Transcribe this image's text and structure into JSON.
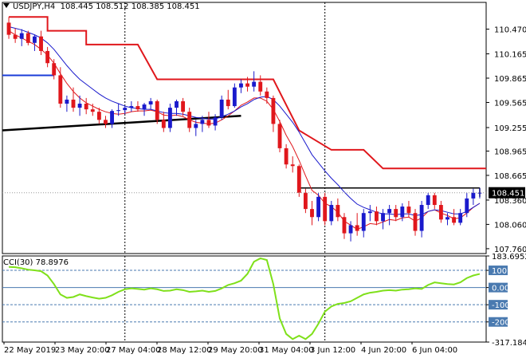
{
  "header": {
    "symbol_tf": "USDJPY,H4",
    "ohlc": "108.445 108.512 108.385 108.451"
  },
  "indicator": {
    "label": "CCI(30) 78.8976"
  },
  "colors": {
    "bull": "#1a1acc",
    "bear": "#e0171c",
    "fast_ma": "#1a1acc",
    "slow_ma": "#e0171c",
    "channel": "#e0171c",
    "trend": "#000000",
    "cci": "#7fe01a",
    "level": "#4a7ab0",
    "price_badge": "#000000",
    "blue_marker": "#1a3cd8"
  },
  "chart_data": [
    {
      "type": "candlestick",
      "title": "",
      "ylim": [
        107.7,
        110.8
      ],
      "y_ticks": [
        "110.470",
        "110.165",
        "109.865",
        "109.565",
        "109.255",
        "108.965",
        "108.665",
        "108.360",
        "108.060",
        "107.760"
      ],
      "current_price_label": "108.451",
      "current_price": 108.451,
      "x_labels": [
        "22 May 2019",
        "23 May 20:00",
        "27 May 04:00",
        "28 May 12:00",
        "29 May 20:00",
        "31 May 04:00",
        "3 Jun 12:00",
        "4 Jun 20:00",
        "6 Jun 04:00"
      ],
      "candles": [
        [
          110.55,
          110.62,
          110.35,
          110.4
        ],
        [
          110.4,
          110.48,
          110.3,
          110.35
        ],
        [
          110.35,
          110.47,
          110.26,
          110.42
        ],
        [
          110.42,
          110.45,
          110.27,
          110.3
        ],
        [
          110.3,
          110.4,
          110.2,
          110.38
        ],
        [
          110.38,
          110.45,
          110.15,
          110.2
        ],
        [
          110.2,
          110.25,
          110.0,
          110.05
        ],
        [
          110.05,
          110.1,
          109.85,
          109.9
        ],
        [
          109.9,
          110.0,
          109.5,
          109.55
        ],
        [
          109.55,
          109.65,
          109.45,
          109.6
        ],
        [
          109.6,
          109.75,
          109.45,
          109.5
        ],
        [
          109.5,
          109.65,
          109.4,
          109.55
        ],
        [
          109.55,
          109.62,
          109.42,
          109.48
        ],
        [
          109.48,
          109.55,
          109.4,
          109.45
        ],
        [
          109.45,
          109.5,
          109.3,
          109.35
        ],
        [
          109.35,
          109.4,
          109.25,
          109.3
        ],
        [
          109.3,
          109.48,
          109.25,
          109.46
        ],
        [
          109.46,
          109.55,
          109.4,
          109.47
        ],
        [
          109.47,
          109.52,
          109.42,
          109.5
        ],
        [
          109.5,
          109.58,
          109.45,
          109.52
        ],
        [
          109.52,
          109.58,
          109.45,
          109.48
        ],
        [
          109.48,
          109.56,
          109.4,
          109.54
        ],
        [
          109.54,
          109.62,
          109.48,
          109.58
        ],
        [
          109.58,
          109.6,
          109.3,
          109.35
        ],
        [
          109.35,
          109.45,
          109.2,
          109.25
        ],
        [
          109.25,
          109.55,
          109.2,
          109.5
        ],
        [
          109.5,
          109.6,
          109.4,
          109.58
        ],
        [
          109.58,
          109.62,
          109.4,
          109.45
        ],
        [
          109.45,
          109.5,
          109.2,
          109.25
        ],
        [
          109.25,
          109.35,
          109.15,
          109.3
        ],
        [
          109.3,
          109.4,
          109.2,
          109.35
        ],
        [
          109.35,
          109.45,
          109.25,
          109.28
        ],
        [
          109.28,
          109.42,
          109.22,
          109.38
        ],
        [
          109.38,
          109.65,
          109.35,
          109.6
        ],
        [
          109.6,
          109.72,
          109.48,
          109.52
        ],
        [
          109.52,
          109.8,
          109.5,
          109.75
        ],
        [
          109.75,
          109.85,
          109.68,
          109.8
        ],
        [
          109.8,
          109.88,
          109.7,
          109.76
        ],
        [
          109.76,
          109.95,
          109.7,
          109.82
        ],
        [
          109.82,
          109.9,
          109.65,
          109.7
        ],
        [
          109.7,
          109.75,
          109.55,
          109.62
        ],
        [
          109.62,
          109.65,
          109.2,
          109.3
        ],
        [
          109.3,
          109.35,
          108.95,
          109.0
        ],
        [
          109.0,
          109.05,
          108.75,
          108.8
        ],
        [
          108.8,
          108.9,
          108.7,
          108.78
        ],
        [
          108.78,
          108.8,
          108.4,
          108.45
        ],
        [
          108.45,
          108.5,
          108.2,
          108.25
        ],
        [
          108.25,
          108.35,
          108.05,
          108.15
        ],
        [
          108.15,
          108.45,
          108.1,
          108.4
        ],
        [
          108.4,
          108.45,
          108.05,
          108.1
        ],
        [
          108.1,
          108.35,
          108.05,
          108.3
        ],
        [
          108.3,
          108.38,
          108.1,
          108.15
        ],
        [
          108.15,
          108.2,
          107.88,
          107.95
        ],
        [
          107.95,
          108.1,
          107.85,
          108.05
        ],
        [
          108.05,
          108.2,
          107.92,
          107.98
        ],
        [
          107.98,
          108.25,
          107.9,
          108.2
        ],
        [
          108.2,
          108.3,
          108.1,
          108.22
        ],
        [
          108.22,
          108.28,
          108.05,
          108.1
        ],
        [
          108.1,
          108.25,
          108.0,
          108.2
        ],
        [
          108.2,
          108.3,
          108.05,
          108.25
        ],
        [
          108.25,
          108.3,
          108.1,
          108.15
        ],
        [
          108.15,
          108.32,
          108.1,
          108.28
        ],
        [
          108.28,
          108.35,
          108.15,
          108.2
        ],
        [
          108.2,
          108.25,
          107.92,
          107.98
        ],
        [
          107.98,
          108.35,
          107.9,
          108.3
        ],
        [
          108.3,
          108.45,
          108.25,
          108.42
        ],
        [
          108.42,
          108.45,
          108.25,
          108.3
        ],
        [
          108.3,
          108.35,
          108.08,
          108.12
        ],
        [
          108.12,
          108.2,
          108.05,
          108.15
        ],
        [
          108.15,
          108.25,
          108.05,
          108.08
        ],
        [
          108.08,
          108.25,
          108.05,
          108.2
        ],
        [
          108.2,
          108.45,
          108.15,
          108.38
        ],
        [
          108.38,
          108.5,
          108.3,
          108.45
        ],
        [
          108.45,
          108.51,
          108.38,
          108.45
        ]
      ],
      "fast_ma": [
        110.5,
        110.48,
        110.46,
        110.43,
        110.4,
        110.36,
        110.3,
        110.22,
        110.12,
        110.02,
        109.93,
        109.85,
        109.79,
        109.73,
        109.67,
        109.62,
        109.58,
        109.55,
        109.52,
        109.5,
        109.49,
        109.48,
        109.48,
        109.46,
        109.44,
        109.43,
        109.43,
        109.42,
        109.4,
        109.38,
        109.37,
        109.36,
        109.36,
        109.39,
        109.42,
        109.46,
        109.51,
        109.55,
        109.6,
        109.63,
        109.64,
        109.6,
        109.52,
        109.42,
        109.32,
        109.2,
        109.06,
        108.92,
        108.82,
        108.72,
        108.63,
        108.55,
        108.46,
        108.38,
        108.31,
        108.27,
        108.24,
        108.21,
        108.19,
        108.19,
        108.18,
        108.19,
        108.19,
        108.17,
        108.18,
        108.22,
        108.24,
        108.23,
        108.21,
        108.19,
        108.19,
        108.22,
        108.27,
        108.32
      ],
      "slow_ma": [
        110.45,
        110.4,
        110.36,
        110.32,
        110.28,
        110.22,
        110.15,
        110.05,
        109.92,
        109.8,
        109.7,
        109.62,
        109.56,
        109.52,
        109.48,
        109.45,
        109.43,
        109.42,
        109.43,
        109.45,
        109.46,
        109.46,
        109.47,
        109.45,
        109.41,
        109.4,
        109.41,
        109.39,
        109.35,
        109.32,
        109.31,
        109.3,
        109.31,
        109.35,
        109.4,
        109.46,
        109.53,
        109.57,
        109.62,
        109.62,
        109.58,
        109.48,
        109.33,
        109.16,
        109.02,
        108.85,
        108.66,
        108.48,
        108.42,
        108.32,
        108.28,
        108.21,
        108.1,
        108.05,
        108.0,
        108.03,
        108.07,
        108.06,
        108.09,
        108.12,
        108.11,
        108.14,
        108.15,
        108.1,
        108.14,
        108.22,
        108.24,
        108.2,
        108.17,
        108.13,
        108.14,
        108.2,
        108.27,
        108.32
      ],
      "channel_upper": [
        [
          0,
          110.62
        ],
        [
          6,
          110.62
        ],
        [
          6,
          110.45
        ],
        [
          12,
          110.45
        ],
        [
          12,
          110.28
        ],
        [
          20,
          110.28
        ],
        [
          23,
          109.85
        ],
        [
          41,
          109.85
        ],
        [
          45,
          109.22
        ],
        [
          50,
          108.98
        ],
        [
          55,
          108.98
        ],
        [
          58,
          108.75
        ],
        [
          74,
          108.75
        ]
      ],
      "resistance_line": {
        "from": [
          45,
          108.51
        ],
        "to": [
          73,
          108.51
        ]
      },
      "trend_line": {
        "from": [
          0,
          109.22
        ],
        "to": [
          36,
          109.4
        ]
      },
      "blue_marker": {
        "from": [
          0,
          109.9
        ],
        "to": [
          7,
          109.9
        ]
      },
      "vlines_at": [
        18,
        49
      ]
    },
    {
      "type": "line",
      "title": "",
      "series": [
        {
          "name": "",
          "values": [
            120,
            118,
            112,
            104,
            100,
            95,
            70,
            20,
            -40,
            -60,
            -55,
            -40,
            -50,
            -58,
            -65,
            -60,
            -45,
            -25,
            -10,
            -5,
            -8,
            -12,
            -5,
            -10,
            -20,
            -18,
            -10,
            -15,
            -25,
            -22,
            -18,
            -25,
            -20,
            -5,
            15,
            25,
            40,
            80,
            150,
            170,
            160,
            20,
            -180,
            -270,
            -300,
            -280,
            -300,
            -270,
            -210,
            -140,
            -110,
            -95,
            -90,
            -80,
            -60,
            -40,
            -30,
            -25,
            -18,
            -15,
            -18,
            -12,
            -10,
            -5,
            -8,
            15,
            30,
            25,
            20,
            18,
            30,
            55,
            70,
            79
          ]
        }
      ],
      "ylim": [
        -317.184,
        183.6952
      ],
      "y_ticks": [
        "183.6952",
        "100",
        "0.00",
        "-100",
        "-200",
        "-317.184"
      ],
      "levels": [
        100,
        0,
        -100,
        -200
      ]
    }
  ]
}
